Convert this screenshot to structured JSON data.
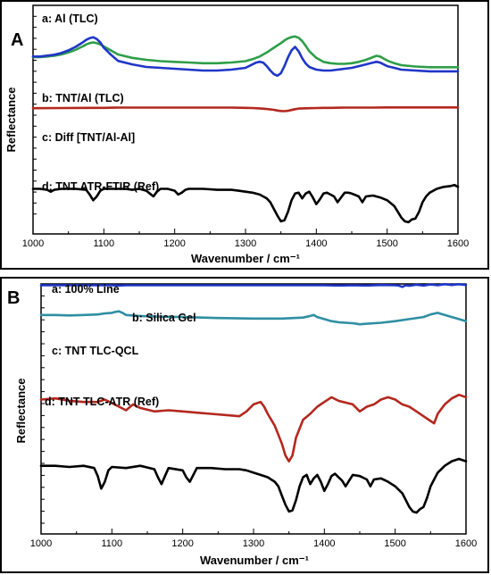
{
  "chart_data": [
    {
      "panel": "A",
      "type": "line",
      "xlabel": "Wavenumber / cm⁻¹",
      "ylabel": "Reflectance",
      "xlim": [
        1000,
        1600
      ],
      "x_ticks": [
        1000,
        1100,
        1200,
        1300,
        1400,
        1500,
        1600
      ],
      "series": [
        {
          "name": "a: Al (TLC)",
          "color": "#2e9e48",
          "x": [
            1000,
            1010,
            1020,
            1030,
            1040,
            1050,
            1060,
            1070,
            1075,
            1080,
            1085,
            1090,
            1095,
            1100,
            1110,
            1120,
            1140,
            1160,
            1180,
            1200,
            1220,
            1240,
            1260,
            1280,
            1300,
            1310,
            1320,
            1330,
            1340,
            1350,
            1355,
            1360,
            1365,
            1370,
            1375,
            1380,
            1385,
            1390,
            1400,
            1410,
            1420,
            1430,
            1440,
            1450,
            1460,
            1470,
            1480,
            1485,
            1490,
            1495,
            1500,
            1510,
            1520,
            1540,
            1560,
            1580,
            1600
          ],
          "y": [
            0.68,
            0.68,
            0.69,
            0.7,
            0.72,
            0.75,
            0.79,
            0.84,
            0.87,
            0.89,
            0.9,
            0.89,
            0.87,
            0.84,
            0.78,
            0.72,
            0.67,
            0.64,
            0.62,
            0.61,
            0.6,
            0.59,
            0.59,
            0.6,
            0.62,
            0.65,
            0.69,
            0.75,
            0.82,
            0.89,
            0.93,
            0.96,
            0.98,
            0.99,
            0.97,
            0.92,
            0.85,
            0.77,
            0.67,
            0.61,
            0.59,
            0.58,
            0.58,
            0.59,
            0.61,
            0.64,
            0.68,
            0.7,
            0.69,
            0.66,
            0.63,
            0.59,
            0.56,
            0.54,
            0.53,
            0.53,
            0.53
          ]
        },
        {
          "name": "b: TNT/Al (TLC)",
          "color": "#1f36c8",
          "x": [
            1000,
            1010,
            1020,
            1030,
            1040,
            1050,
            1060,
            1070,
            1075,
            1080,
            1085,
            1090,
            1095,
            1100,
            1110,
            1120,
            1140,
            1160,
            1180,
            1200,
            1220,
            1240,
            1260,
            1280,
            1300,
            1310,
            1315,
            1320,
            1325,
            1330,
            1335,
            1340,
            1345,
            1350,
            1355,
            1360,
            1365,
            1370,
            1375,
            1380,
            1385,
            1390,
            1400,
            1410,
            1420,
            1430,
            1440,
            1450,
            1460,
            1470,
            1480,
            1485,
            1490,
            1495,
            1500,
            1510,
            1520,
            1540,
            1560,
            1580,
            1600
          ],
          "y": [
            0.64,
            0.64,
            0.65,
            0.66,
            0.68,
            0.71,
            0.75,
            0.8,
            0.83,
            0.85,
            0.86,
            0.84,
            0.8,
            0.74,
            0.66,
            0.59,
            0.55,
            0.52,
            0.51,
            0.5,
            0.49,
            0.48,
            0.48,
            0.49,
            0.51,
            0.55,
            0.57,
            0.58,
            0.57,
            0.53,
            0.48,
            0.44,
            0.42,
            0.45,
            0.53,
            0.63,
            0.71,
            0.75,
            0.7,
            0.62,
            0.56,
            0.52,
            0.49,
            0.48,
            0.48,
            0.49,
            0.5,
            0.51,
            0.53,
            0.55,
            0.57,
            0.58,
            0.57,
            0.55,
            0.53,
            0.51,
            0.49,
            0.48,
            0.47,
            0.47,
            0.47
          ]
        },
        {
          "name": "c: Diff [TNT/Al-Al]",
          "color": "#b3281e",
          "x": [
            1000,
            1040,
            1080,
            1100,
            1120,
            1160,
            1200,
            1240,
            1280,
            1300,
            1310,
            1320,
            1330,
            1340,
            1345,
            1350,
            1355,
            1360,
            1365,
            1370,
            1375,
            1380,
            1390,
            1400,
            1410,
            1420,
            1440,
            1460,
            1480,
            1500,
            1520,
            1540,
            1560,
            1580,
            1600
          ],
          "y": [
            0.4,
            0.41,
            0.42,
            0.42,
            0.43,
            0.43,
            0.43,
            0.43,
            0.43,
            0.42,
            0.41,
            0.39,
            0.36,
            0.32,
            0.28,
            0.26,
            0.25,
            0.27,
            0.31,
            0.35,
            0.38,
            0.39,
            0.4,
            0.41,
            0.42,
            0.42,
            0.43,
            0.43,
            0.43,
            0.44,
            0.44,
            0.44,
            0.44,
            0.44,
            0.44
          ]
        },
        {
          "name": "d: TNT ATR-FTIR (Ref)",
          "color": "#000000",
          "x": [
            1000,
            1010,
            1020,
            1025,
            1030,
            1040,
            1060,
            1075,
            1080,
            1085,
            1090,
            1095,
            1100,
            1110,
            1120,
            1130,
            1140,
            1150,
            1160,
            1165,
            1170,
            1175,
            1180,
            1190,
            1200,
            1205,
            1210,
            1215,
            1220,
            1240,
            1260,
            1280,
            1290,
            1300,
            1310,
            1320,
            1325,
            1330,
            1335,
            1340,
            1345,
            1350,
            1355,
            1360,
            1365,
            1370,
            1375,
            1380,
            1385,
            1390,
            1395,
            1400,
            1405,
            1410,
            1415,
            1420,
            1425,
            1430,
            1435,
            1440,
            1445,
            1450,
            1460,
            1465,
            1470,
            1480,
            1490,
            1500,
            1510,
            1515,
            1520,
            1525,
            1530,
            1535,
            1540,
            1545,
            1550,
            1555,
            1560,
            1570,
            1580,
            1590,
            1595,
            1600
          ],
          "y": [
            0.36,
            0.36,
            0.35,
            0.33,
            0.35,
            0.36,
            0.36,
            0.35,
            0.3,
            0.24,
            0.28,
            0.34,
            0.36,
            0.36,
            0.36,
            0.36,
            0.35,
            0.36,
            0.34,
            0.31,
            0.28,
            0.33,
            0.36,
            0.36,
            0.34,
            0.3,
            0.32,
            0.35,
            0.36,
            0.36,
            0.35,
            0.35,
            0.34,
            0.33,
            0.32,
            0.3,
            0.28,
            0.26,
            0.22,
            0.15,
            0.08,
            0.02,
            0.03,
            0.12,
            0.24,
            0.31,
            0.32,
            0.26,
            0.31,
            0.33,
            0.27,
            0.2,
            0.25,
            0.31,
            0.32,
            0.3,
            0.28,
            0.22,
            0.27,
            0.32,
            0.32,
            0.31,
            0.28,
            0.22,
            0.28,
            0.29,
            0.27,
            0.24,
            0.18,
            0.12,
            0.06,
            0.02,
            0.01,
            0.04,
            0.05,
            0.12,
            0.22,
            0.28,
            0.32,
            0.36,
            0.38,
            0.39,
            0.4,
            0.38
          ]
        }
      ]
    },
    {
      "panel": "B",
      "type": "line",
      "xlabel": "Wavenumber / cm⁻¹",
      "ylabel": "Reflectance",
      "xlim": [
        1000,
        1600
      ],
      "x_ticks": [
        1000,
        1100,
        1200,
        1300,
        1400,
        1500,
        1600
      ],
      "series": [
        {
          "name": "a: 100% Line",
          "color": "#1f36c8",
          "x": [
            1000,
            1050,
            1100,
            1110,
            1120,
            1150,
            1200,
            1250,
            1300,
            1350,
            1400,
            1420,
            1440,
            1460,
            1480,
            1500,
            1505,
            1510,
            1515,
            1520,
            1530,
            1540,
            1550,
            1560,
            1570,
            1580,
            1590,
            1600
          ],
          "y": [
            0.95,
            0.95,
            0.95,
            0.94,
            0.95,
            0.95,
            0.95,
            0.95,
            0.95,
            0.95,
            0.95,
            0.94,
            0.95,
            0.94,
            0.96,
            0.95,
            0.94,
            0.89,
            0.95,
            0.93,
            0.97,
            0.94,
            0.98,
            0.95,
            0.99,
            0.96,
            0.99,
            0.96
          ]
        },
        {
          "name": "b: Silica Gel",
          "color": "#2f8fa3",
          "x": [
            1000,
            1020,
            1040,
            1060,
            1080,
            1090,
            1100,
            1105,
            1110,
            1115,
            1120,
            1140,
            1160,
            1200,
            1250,
            1300,
            1340,
            1370,
            1380,
            1385,
            1390,
            1400,
            1410,
            1420,
            1440,
            1450,
            1460,
            1480,
            1500,
            1520,
            1540,
            1550,
            1560,
            1565,
            1570,
            1580,
            1590,
            1600
          ],
          "y": [
            0.78,
            0.78,
            0.77,
            0.78,
            0.79,
            0.81,
            0.82,
            0.84,
            0.85,
            0.82,
            0.78,
            0.76,
            0.75,
            0.74,
            0.72,
            0.71,
            0.71,
            0.73,
            0.76,
            0.78,
            0.74,
            0.7,
            0.66,
            0.64,
            0.62,
            0.6,
            0.61,
            0.63,
            0.66,
            0.7,
            0.74,
            0.79,
            0.82,
            0.8,
            0.78,
            0.74,
            0.7,
            0.66
          ]
        },
        {
          "name": "c: TNT TLC-QCL",
          "color": "#b3281e",
          "x": [
            1000,
            1020,
            1040,
            1060,
            1080,
            1090,
            1100,
            1110,
            1120,
            1130,
            1140,
            1160,
            1180,
            1200,
            1220,
            1240,
            1260,
            1280,
            1290,
            1300,
            1310,
            1315,
            1320,
            1330,
            1340,
            1345,
            1350,
            1355,
            1360,
            1370,
            1380,
            1390,
            1400,
            1410,
            1420,
            1440,
            1450,
            1460,
            1470,
            1480,
            1490,
            1500,
            1510,
            1520,
            1530,
            1540,
            1550,
            1555,
            1560,
            1570,
            1580,
            1590,
            1600
          ],
          "y": [
            0.62,
            0.63,
            0.61,
            0.6,
            0.6,
            0.62,
            0.59,
            0.56,
            0.53,
            0.58,
            0.55,
            0.52,
            0.53,
            0.52,
            0.51,
            0.5,
            0.49,
            0.48,
            0.52,
            0.58,
            0.6,
            0.56,
            0.5,
            0.4,
            0.25,
            0.15,
            0.1,
            0.15,
            0.3,
            0.45,
            0.5,
            0.56,
            0.6,
            0.64,
            0.61,
            0.58,
            0.52,
            0.56,
            0.58,
            0.62,
            0.64,
            0.62,
            0.58,
            0.56,
            0.52,
            0.48,
            0.44,
            0.42,
            0.5,
            0.58,
            0.63,
            0.66,
            0.64
          ]
        },
        {
          "name": "d: TNT TLC-ATR (Ref)",
          "color": "#000000",
          "x": [
            1000,
            1020,
            1040,
            1060,
            1075,
            1080,
            1085,
            1090,
            1095,
            1100,
            1120,
            1140,
            1160,
            1165,
            1170,
            1175,
            1180,
            1200,
            1205,
            1210,
            1215,
            1220,
            1240,
            1260,
            1280,
            1290,
            1300,
            1310,
            1320,
            1330,
            1335,
            1340,
            1345,
            1350,
            1355,
            1360,
            1365,
            1370,
            1375,
            1380,
            1385,
            1390,
            1395,
            1400,
            1405,
            1410,
            1415,
            1420,
            1425,
            1430,
            1435,
            1440,
            1450,
            1460,
            1465,
            1470,
            1480,
            1490,
            1500,
            1510,
            1515,
            1520,
            1525,
            1530,
            1535,
            1540,
            1545,
            1550,
            1555,
            1560,
            1570,
            1580,
            1590,
            1600
          ],
          "y": [
            0.44,
            0.44,
            0.43,
            0.44,
            0.42,
            0.35,
            0.24,
            0.3,
            0.4,
            0.43,
            0.42,
            0.44,
            0.41,
            0.34,
            0.28,
            0.35,
            0.42,
            0.4,
            0.34,
            0.3,
            0.36,
            0.42,
            0.42,
            0.41,
            0.41,
            0.4,
            0.38,
            0.36,
            0.34,
            0.3,
            0.26,
            0.18,
            0.1,
            0.04,
            0.05,
            0.14,
            0.26,
            0.34,
            0.36,
            0.28,
            0.33,
            0.36,
            0.3,
            0.22,
            0.28,
            0.35,
            0.37,
            0.34,
            0.31,
            0.26,
            0.31,
            0.36,
            0.35,
            0.32,
            0.26,
            0.32,
            0.33,
            0.3,
            0.26,
            0.2,
            0.14,
            0.08,
            0.04,
            0.03,
            0.06,
            0.08,
            0.16,
            0.26,
            0.32,
            0.38,
            0.44,
            0.48,
            0.5,
            0.48
          ]
        }
      ]
    }
  ]
}
